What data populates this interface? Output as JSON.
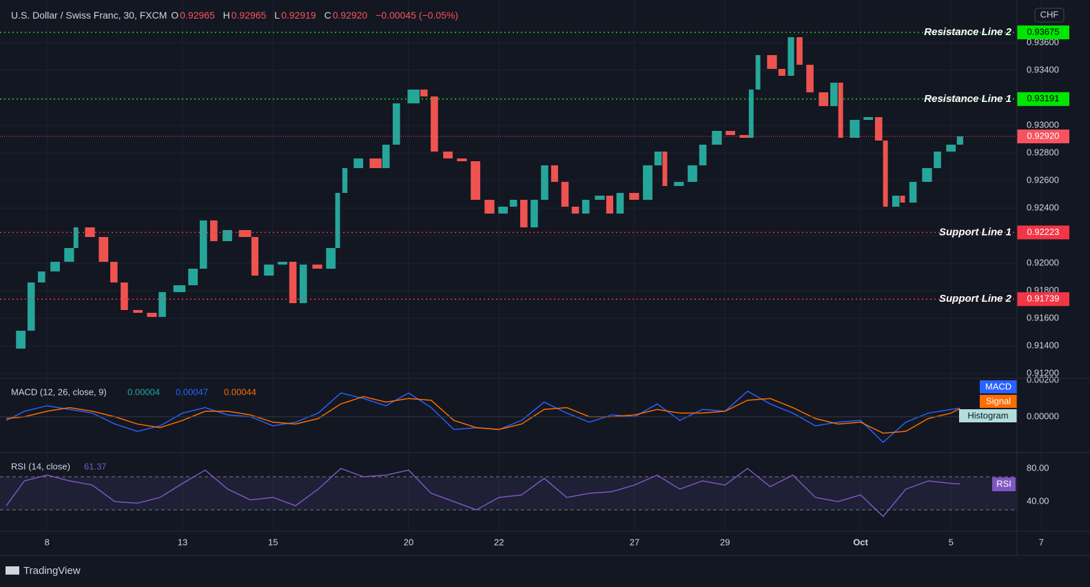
{
  "header": {
    "symbol": "U.S. Dollar / Swiss Franc, 30, FXCM",
    "o": "O",
    "open": "0.92965",
    "h": "H",
    "high": "0.92965",
    "l": "L",
    "low": "0.92919",
    "c": "C",
    "close": "0.92920",
    "change": "−0.00045 (−0.05%)"
  },
  "branding": "TradingView",
  "chart_data": [
    {
      "type": "candlestick",
      "currency": "CHF",
      "up_color": "#26a69a",
      "down_color": "#ef5350",
      "x": [
        -0.88,
        -0.58,
        -0.35,
        -0.12,
        0.18,
        0.49,
        0.64,
        0.95,
        1.25,
        1.48,
        1.71,
        2.01,
        2.32,
        2.55,
        2.93,
        3.23,
        3.46,
        3.69,
        3.99,
        4.38,
        4.6,
        4.91,
        5.21,
        5.44,
        5.67,
        5.98,
        6.28,
        6.43,
        6.59,
        6.89,
        7.27,
        7.5,
        7.73,
        8.11,
        8.34,
        8.57,
        8.87,
        9.18,
        9.48,
        9.79,
        10.09,
        10.32,
        10.55,
        10.78,
        11.01,
        11.23,
        11.46,
        11.69,
        11.92,
        12.23,
        12.45,
        12.68,
        12.99,
        13.29,
        13.52,
        13.67,
        13.98,
        14.28,
        14.51,
        14.82,
        15.12,
        15.43,
        15.58,
        15.73,
        16.04,
        16.26,
        16.46,
        16.65,
        16.88,
        17.18,
        17.41,
        17.56,
        17.87,
        18.17,
        18.4,
        18.55,
        18.78,
        18.93,
        19.16,
        19.47,
        19.7,
        20,
        20.2
      ],
      "values": [
        0.9138,
        0.9151,
        0.9186,
        0.9194,
        0.9201,
        0.9211,
        0.9226,
        0.9219,
        0.9201,
        0.9186,
        0.9166,
        0.9164,
        0.9161,
        0.9179,
        0.9184,
        0.9196,
        0.9231,
        0.9216,
        0.9224,
        0.9219,
        0.9191,
        0.9199,
        0.9201,
        0.9171,
        0.9199,
        0.9196,
        0.9211,
        0.9251,
        0.9269,
        0.9276,
        0.9269,
        0.9286,
        0.9316,
        0.9326,
        0.9321,
        0.9281,
        0.9276,
        0.9274,
        0.9246,
        0.9236,
        0.9241,
        0.9246,
        0.9226,
        0.9246,
        0.9271,
        0.9259,
        0.9241,
        0.9236,
        0.9246,
        0.9249,
        0.9236,
        0.9251,
        0.9246,
        0.9271,
        0.9281,
        0.9256,
        0.9259,
        0.9271,
        0.9286,
        0.9296,
        0.9293,
        0.9291,
        0.9326,
        0.9351,
        0.9341,
        0.9336,
        0.9364,
        0.9344,
        0.9324,
        0.9314,
        0.9331,
        0.9291,
        0.9304,
        0.9306,
        0.9289,
        0.9241,
        0.9249,
        0.9244,
        0.9259,
        0.9269,
        0.9281,
        0.9286,
        0.9292
      ],
      "xlim": [
        -1.04,
        21.46
      ],
      "ylim": [
        0.9117,
        0.9391
      ],
      "yticks": [
        {
          "value": 0.912,
          "label": "0.91200"
        },
        {
          "value": 0.914,
          "label": "0.91400"
        },
        {
          "value": 0.916,
          "label": "0.91600"
        },
        {
          "value": 0.918,
          "label": "0.91800"
        },
        {
          "value": 0.92,
          "label": "0.92000"
        },
        {
          "value": 0.922,
          "label": "0.92200"
        },
        {
          "value": 0.924,
          "label": "0.92400"
        },
        {
          "value": 0.926,
          "label": "0.92600"
        },
        {
          "value": 0.928,
          "label": "0.92800"
        },
        {
          "value": 0.93,
          "label": "0.93000"
        },
        {
          "value": 0.932,
          "label": "0.93200"
        },
        {
          "value": 0.934,
          "label": "0.93400"
        },
        {
          "value": 0.936,
          "label": "0.93600"
        }
      ],
      "xticks": [
        {
          "value": 0,
          "label": "8"
        },
        {
          "value": 3,
          "label": "13"
        },
        {
          "value": 5,
          "label": "15"
        },
        {
          "value": 8,
          "label": "20"
        },
        {
          "value": 10,
          "label": "22"
        },
        {
          "value": 13,
          "label": "27"
        },
        {
          "value": 15,
          "label": "29"
        },
        {
          "value": 18,
          "label": "Oct"
        },
        {
          "value": 20,
          "label": "5"
        },
        {
          "value": 22,
          "label": "7"
        }
      ],
      "levels": [
        {
          "name": "Resistance Line 2",
          "value": 0.93675,
          "label": "0.93675",
          "color": "#00e600"
        },
        {
          "name": "Resistance Line 1",
          "value": 0.93191,
          "label": "0.93191",
          "color": "#00e600"
        },
        {
          "name": "Support Line 1",
          "value": 0.92223,
          "label": "0.92223",
          "color": "#f23645"
        },
        {
          "name": "Support Line 2",
          "value": 0.91739,
          "label": "0.91739",
          "color": "#f23645"
        }
      ],
      "last_price": {
        "value": 0.9292,
        "label": "0.92920",
        "color": "#f7525f"
      }
    },
    {
      "type": "line",
      "title": "MACD (12, 26, close, 9)",
      "readouts": [
        "0.00004",
        "0.00047",
        "0.00044"
      ],
      "histogram_label": "Histogram",
      "x": [
        -0.9,
        -0.5,
        0,
        0.5,
        1,
        1.5,
        2,
        2.5,
        3,
        3.5,
        4,
        4.5,
        5,
        5.5,
        6,
        6.5,
        7,
        7.5,
        8,
        8.5,
        9,
        9.5,
        10,
        10.5,
        11,
        11.5,
        12,
        12.5,
        13,
        13.5,
        14,
        14.5,
        15,
        15.5,
        16,
        16.5,
        17,
        17.5,
        18,
        18.5,
        19,
        19.5,
        20,
        20.2
      ],
      "series": [
        {
          "name": "MACD",
          "color": "#2962ff",
          "values": [
            -0.0002,
            0.0003,
            0.0006,
            0.0004,
            0.0002,
            -0.0004,
            -0.0008,
            -0.0005,
            0.0002,
            0.0005,
            0.0001,
            0,
            -0.0005,
            -0.0003,
            0.0002,
            0.0013,
            0.001,
            0.0006,
            0.0013,
            0.0005,
            -0.0007,
            -0.0006,
            -0.0007,
            -0.0002,
            0.0008,
            0.0002,
            -0.0003,
            0.0001,
            0,
            0.0007,
            -0.0002,
            0.0004,
            0.0003,
            0.0014,
            0.0007,
            0.0002,
            -0.0005,
            -0.0003,
            -0.0002,
            -0.0014,
            -0.0003,
            0.0002,
            0.0004,
            0.00047
          ]
        },
        {
          "name": "Signal",
          "color": "#ff6d00",
          "values": [
            -0.0001,
            0,
            0.0003,
            0.0005,
            0.0003,
            0,
            -0.0004,
            -0.0006,
            -0.0002,
            0.0003,
            0.0003,
            0.0001,
            -0.0003,
            -0.0004,
            -0.0001,
            0.0007,
            0.0011,
            0.0008,
            0.001,
            0.0009,
            -0.0002,
            -0.0006,
            -0.0007,
            -0.0004,
            0.0004,
            0.0005,
            0,
            0,
            0.0001,
            0.0004,
            0.0002,
            0.0002,
            0.0003,
            0.0009,
            0.001,
            0.0005,
            -0.0001,
            -0.0004,
            -0.0003,
            -0.0009,
            -0.0008,
            -0.0001,
            0.0002,
            0.00044
          ]
        }
      ],
      "xlim": [
        -1.04,
        21.46
      ],
      "ylim": [
        -0.00193,
        0.00207
      ],
      "yticks": [
        {
          "value": 0.002,
          "label": "0.00200"
        },
        {
          "value": 0,
          "label": "0.00000"
        }
      ]
    },
    {
      "type": "line",
      "title": "RSI (14, close)",
      "readout": "61.37",
      "bands": [
        30,
        70
      ],
      "x": [
        -0.9,
        -0.5,
        0,
        0.5,
        1,
        1.5,
        2,
        2.5,
        3,
        3.5,
        4,
        4.5,
        5,
        5.5,
        6,
        6.5,
        7,
        7.5,
        8,
        8.5,
        9,
        9.5,
        10,
        10.5,
        11,
        11.5,
        12,
        12.5,
        13,
        13.5,
        14,
        14.5,
        15,
        15.5,
        16,
        16.5,
        17,
        17.5,
        18,
        18.5,
        19,
        19.5,
        20,
        20.2
      ],
      "series": [
        {
          "name": "RSI",
          "color": "#7e57c2",
          "values": [
            35,
            65,
            72,
            65,
            60,
            40,
            38,
            45,
            62,
            78,
            55,
            42,
            45,
            35,
            55,
            80,
            70,
            72,
            78,
            50,
            40,
            30,
            45,
            48,
            68,
            45,
            50,
            52,
            60,
            72,
            55,
            65,
            60,
            80,
            58,
            72,
            45,
            40,
            48,
            22,
            55,
            65,
            62,
            61.37
          ]
        }
      ],
      "xlim": [
        -1.04,
        21.46
      ],
      "ylim": [
        5,
        98.3
      ],
      "yticks": [
        {
          "value": 80,
          "label": "80.00"
        },
        {
          "value": 40,
          "label": "40.00"
        }
      ]
    }
  ]
}
